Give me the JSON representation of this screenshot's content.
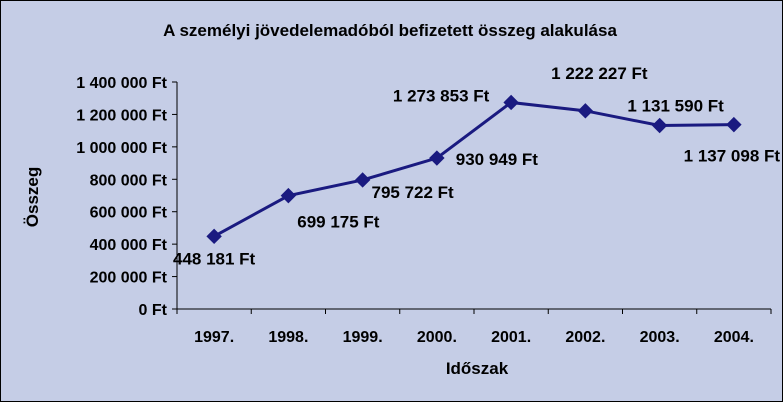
{
  "chart_data": {
    "type": "line",
    "title": "A személyi jövedelemadóból befizetett összeg alakulása",
    "xlabel": "Időszak",
    "ylabel": "Összeg",
    "categories": [
      "1997.",
      "1998.",
      "1999.",
      "2000.",
      "2001.",
      "2002.",
      "2003.",
      "2004."
    ],
    "values": [
      448181,
      699175,
      795722,
      930949,
      1273853,
      1222227,
      1131590,
      1137098
    ],
    "data_labels": [
      "448 181 Ft",
      "699 175 Ft",
      "795 722 Ft",
      "930 949 Ft",
      "1 273 853 Ft",
      "1 222 227 Ft",
      "1 131 590 Ft",
      "1 137 098 Ft"
    ],
    "y_ticks": [
      0,
      200000,
      400000,
      600000,
      800000,
      1000000,
      1200000,
      1400000
    ],
    "y_tick_labels": [
      "0 Ft",
      "200 000 Ft",
      "400 000 Ft",
      "600 000 Ft",
      "800 000 Ft",
      "1 000 000 Ft",
      "1 200 000 Ft",
      "1 400 000 Ft"
    ],
    "ylim": [
      0,
      1400000
    ],
    "grid": false,
    "legend": "none",
    "colors": {
      "background": "#c5cde6",
      "plot_area": "#c5cde6",
      "line": "#1a1a80",
      "marker": "#1a1a80",
      "text": "#000000"
    }
  }
}
